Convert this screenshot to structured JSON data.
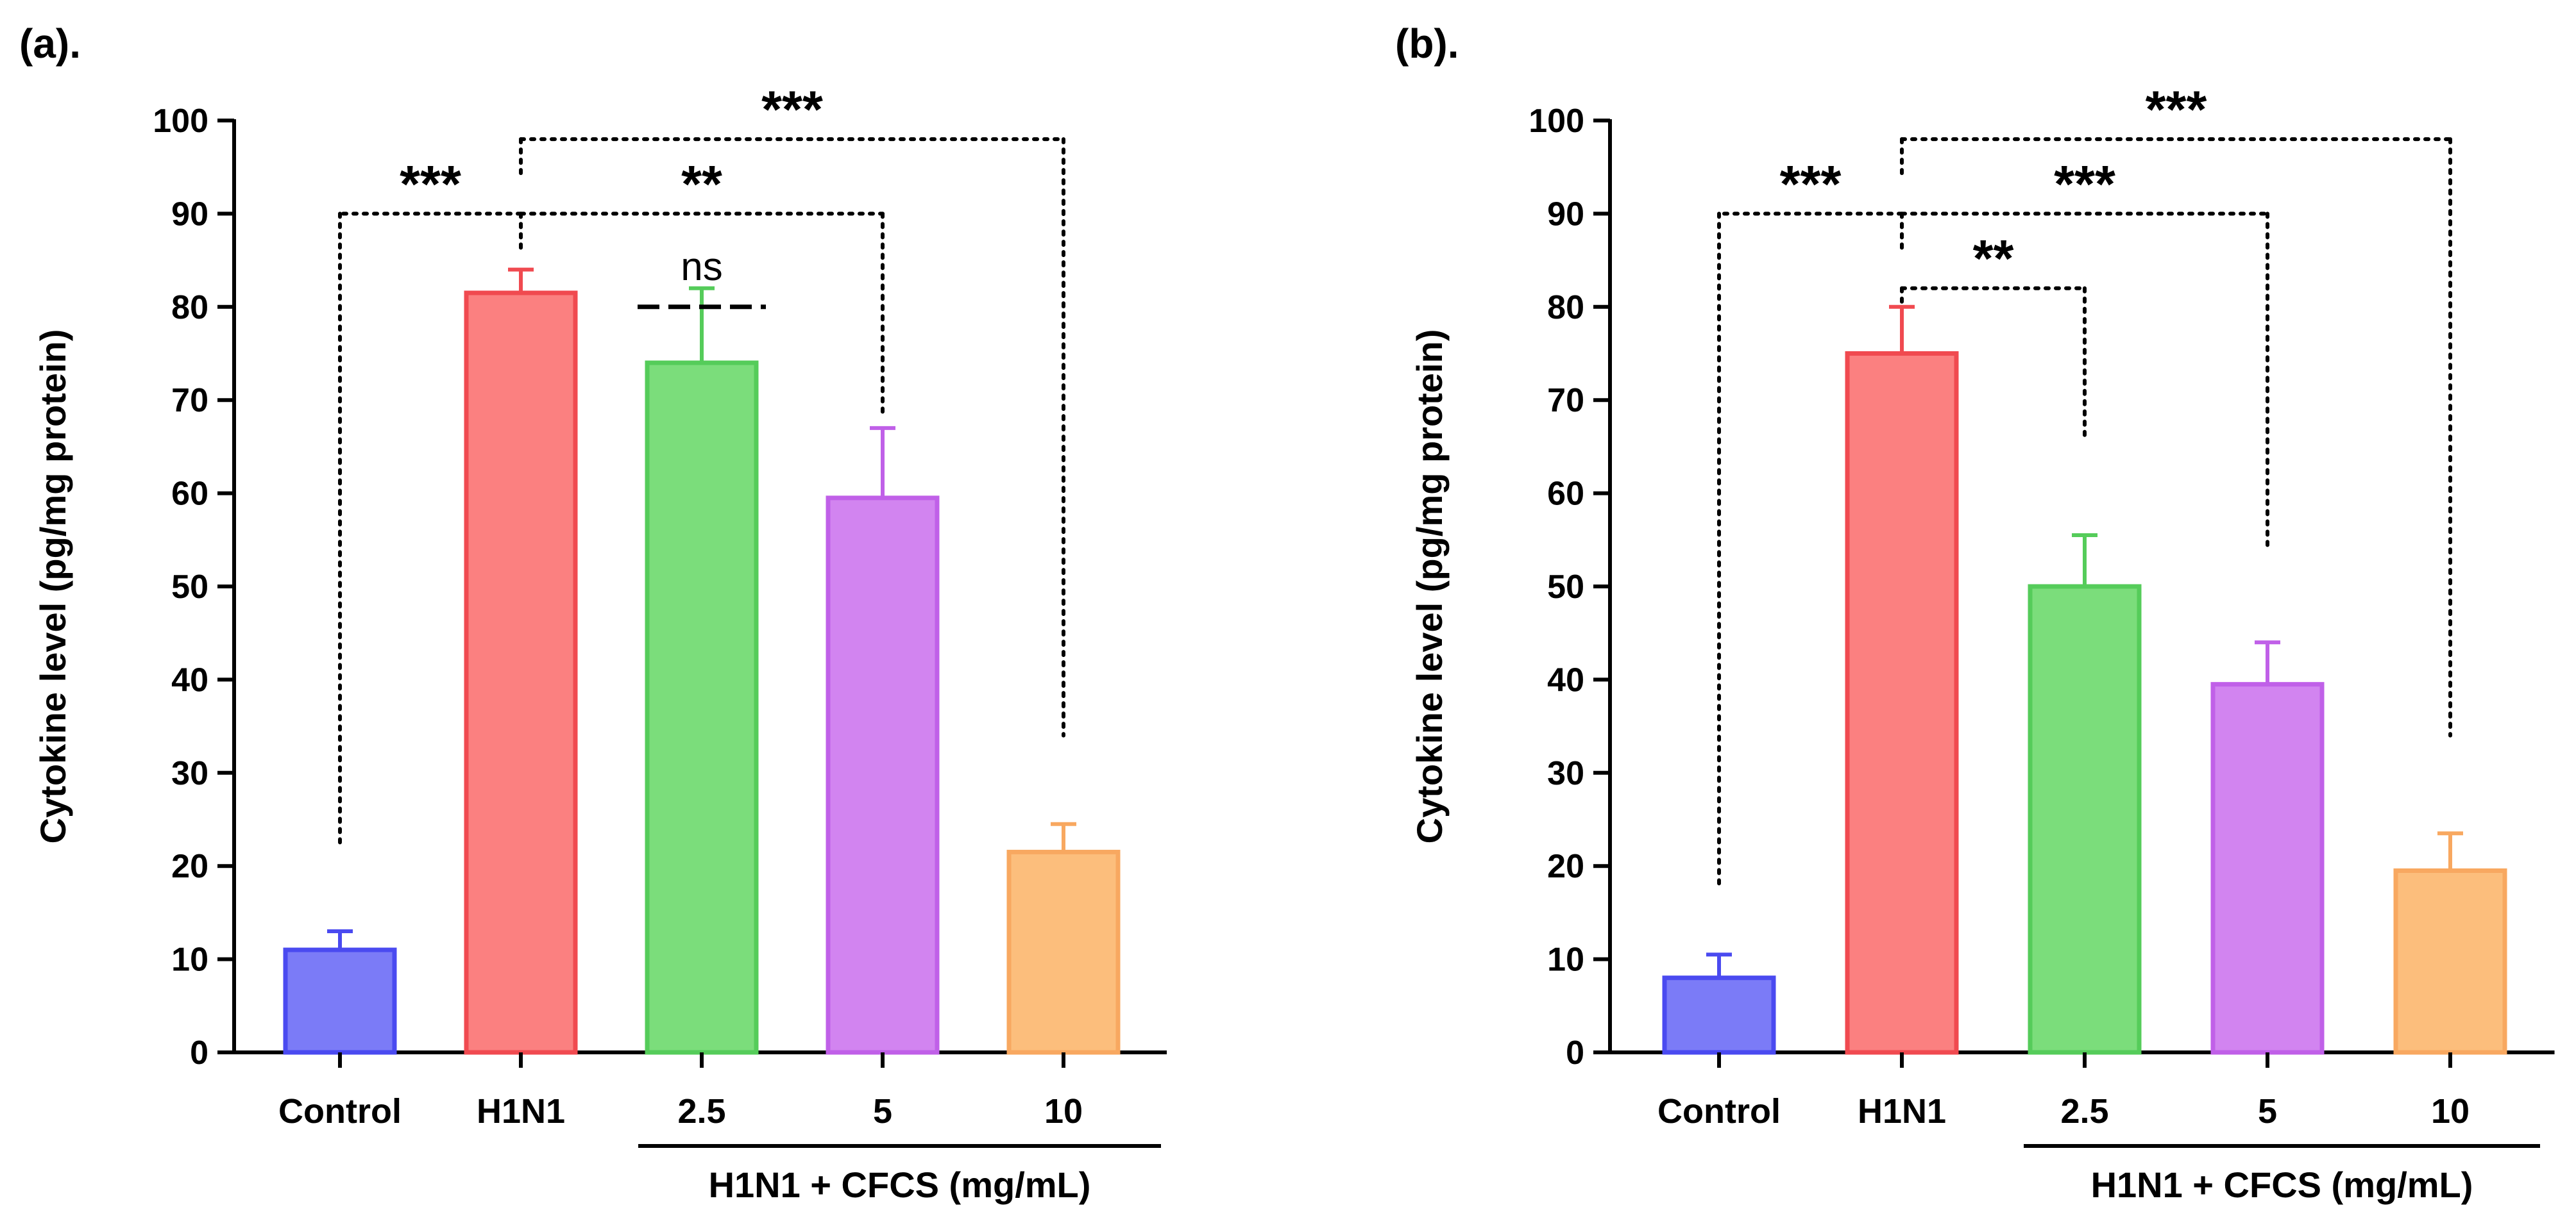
{
  "chart_data": [
    {
      "type": "bar",
      "panel_label": "(a).",
      "categories": [
        "Control",
        "H1N1",
        "2.5",
        "5",
        "10"
      ],
      "group_label": "H1N1 + CFCS (mg/mL)",
      "values": [
        11,
        81.5,
        74,
        59.5,
        21.5
      ],
      "errors": [
        2,
        2.5,
        8,
        7.5,
        3
      ],
      "colors": [
        "#7b7bf7",
        "#fb8080",
        "#7bdd7b",
        "#d284f0",
        "#fcbe7c"
      ],
      "edge_colors": [
        "#4a4af0",
        "#f04a50",
        "#55cc5a",
        "#c060e8",
        "#f8a860"
      ],
      "ylabel": "Cytokine level (pg/mg protein)",
      "ylim": [
        0,
        100
      ],
      "yticks": [
        "0",
        "10",
        "20",
        "30",
        "40",
        "50",
        "60",
        "70",
        "80",
        "90",
        "100"
      ],
      "annotations": [
        {
          "from": 1,
          "to": 0,
          "level": 90,
          "label": "***",
          "style": "dotted",
          "drop_to": 22
        },
        {
          "from": 1,
          "to": 4,
          "level": 98,
          "label": "***",
          "style": "dotted",
          "drop_to": 34
        },
        {
          "from": 1,
          "to": 3,
          "level": 90,
          "label": "**",
          "style": "dotted",
          "drop_to": 68
        },
        {
          "from": 2,
          "to": 2,
          "level": 80,
          "label": "ns",
          "style": "dashed"
        }
      ]
    },
    {
      "type": "bar",
      "panel_label": "(b).",
      "categories": [
        "Control",
        "H1N1",
        "2.5",
        "5",
        "10"
      ],
      "group_label": "H1N1 + CFCS (mg/mL)",
      "values": [
        8,
        75,
        50,
        39.5,
        19.5
      ],
      "errors": [
        2.5,
        5,
        5.5,
        4.5,
        4
      ],
      "colors": [
        "#7b7bf7",
        "#fb8080",
        "#7bdd7b",
        "#d284f0",
        "#fcbe7c"
      ],
      "edge_colors": [
        "#4a4af0",
        "#f04a50",
        "#55cc5a",
        "#c060e8",
        "#f8a860"
      ],
      "ylabel": "Cytokine level (pg/mg protein)",
      "ylim": [
        0,
        100
      ],
      "yticks": [
        "0",
        "10",
        "20",
        "30",
        "40",
        "50",
        "60",
        "70",
        "80",
        "90",
        "100"
      ],
      "annotations": [
        {
          "from": 1,
          "to": 0,
          "level": 90,
          "label": "***",
          "style": "dotted",
          "drop_to": 18
        },
        {
          "from": 1,
          "to": 4,
          "level": 98,
          "label": "***",
          "style": "dotted",
          "drop_to": 34
        },
        {
          "from": 1,
          "to": 3,
          "level": 90,
          "label": "***",
          "style": "dotted",
          "drop_to": 54
        },
        {
          "from": 1,
          "to": 2,
          "level": 82,
          "label": "**",
          "style": "dotted",
          "drop_to": 66
        }
      ]
    }
  ]
}
